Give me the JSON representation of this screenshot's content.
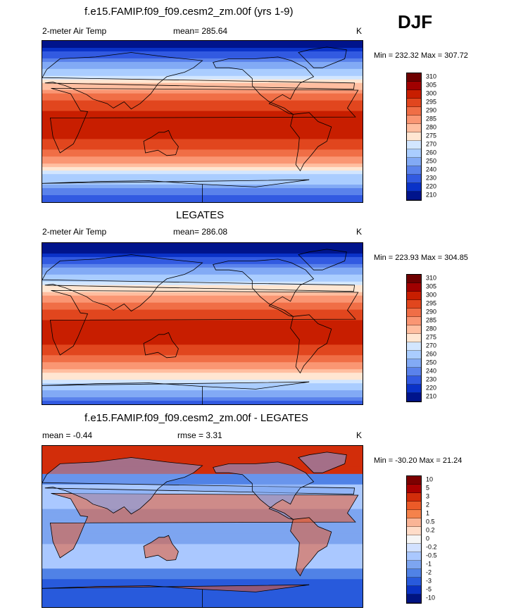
{
  "season_label": "DJF",
  "panels": [
    {
      "title": "f.e15.FAMIP.f09_f09.cesm2_zm.00f (yrs 1-9)",
      "variable": "2-meter Air Temp",
      "stat_text": "mean= 285.64",
      "units": "K",
      "minmax": "Min = 232.32 Max = 307.72",
      "colorbar_labels": [
        "310",
        "305",
        "300",
        "295",
        "290",
        "285",
        "280",
        "275",
        "270",
        "260",
        "250",
        "240",
        "230",
        "220",
        "210"
      ],
      "field_type": "temperature",
      "field_params": {
        "lat_warm": 5,
        "land_bias": 0
      }
    },
    {
      "title": "LEGATES",
      "variable": "2-meter Air Temp",
      "stat_text": "mean= 286.08",
      "units": "K",
      "minmax": "Min = 223.93 Max = 304.85",
      "colorbar_labels": [
        "310",
        "305",
        "300",
        "295",
        "290",
        "285",
        "280",
        "275",
        "270",
        "260",
        "250",
        "240",
        "230",
        "220",
        "210"
      ],
      "field_type": "temperature",
      "field_params": {
        "lat_warm": 0,
        "land_bias": -1
      }
    },
    {
      "title": "f.e15.FAMIP.f09_f09.cesm2_zm.00f - LEGATES",
      "variable": "mean =  -0.44",
      "stat_text": "rmse =   3.31",
      "units": "K",
      "minmax": "Min = -30.20 Max =  21.24",
      "colorbar_labels": [
        "10",
        "5",
        "3",
        "2",
        "1",
        "0.5",
        "0.2",
        "0",
        "-0.2",
        "-0.5",
        "-1",
        "-2",
        "-3",
        "-5",
        "-10"
      ],
      "field_type": "difference",
      "field_params": {
        "lat_warm": 0,
        "land_bias": 0
      }
    }
  ],
  "colors": {
    "temperature_scale": [
      "#6e0000",
      "#a00000",
      "#c81e00",
      "#e1461e",
      "#f06e46",
      "#fa9673",
      "#ffbea0",
      "#ffe6d2",
      "#d2e6ff",
      "#aacdff",
      "#82aaf5",
      "#5a82eb",
      "#325ae1",
      "#0a32c8",
      "#00148c"
    ],
    "difference_scale": [
      "#7d0000",
      "#aa0000",
      "#d22d0a",
      "#eb5a28",
      "#f5824b",
      "#fab496",
      "#ffdcc8",
      "#f5f5f5",
      "#d2e1ff",
      "#aac8ff",
      "#7da5f0",
      "#5082e6",
      "#285adc",
      "#0a32c3",
      "#001482"
    ]
  }
}
